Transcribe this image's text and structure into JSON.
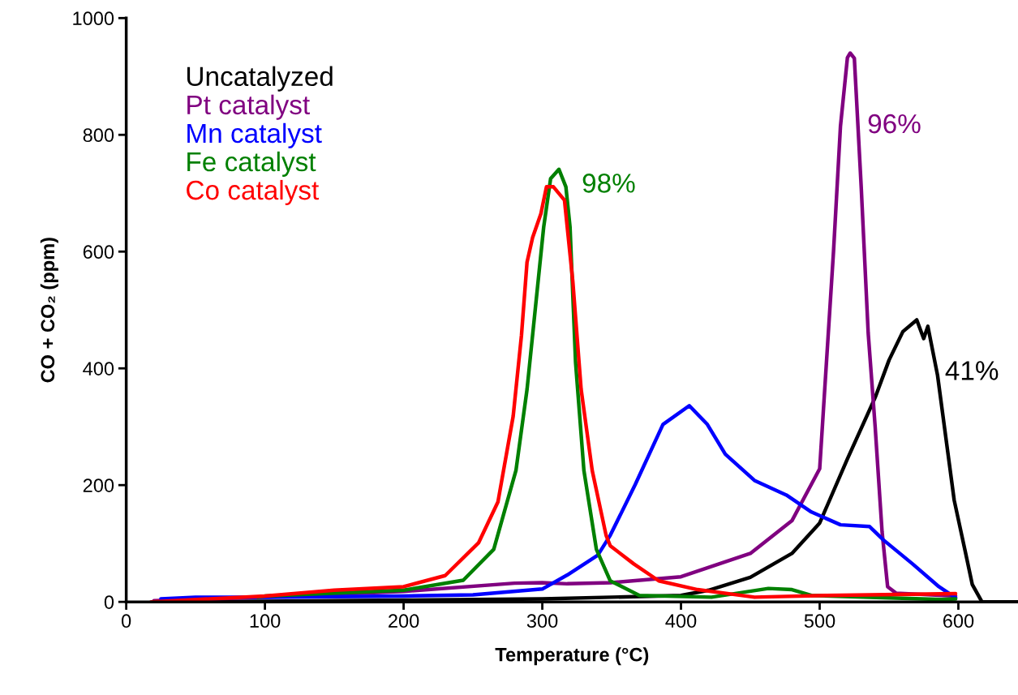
{
  "chart_data": {
    "type": "line",
    "xlabel": "Temperature (°C)",
    "ylabel": "CO + CO₂ (ppm)",
    "xlim": [
      0,
      643
    ],
    "xticks": [
      0,
      100,
      200,
      300,
      400,
      500,
      600
    ],
    "ylim": [
      0,
      1000
    ],
    "yticks": [
      0,
      200,
      400,
      600,
      800,
      1000
    ],
    "grid": false,
    "legend": "top left",
    "marker": "none",
    "line_style": "solid",
    "series": [
      {
        "name": "Uncatalyzed",
        "color": "#000000",
        "x": [
          20,
          100,
          200,
          300,
          350,
          400,
          420,
          450,
          480,
          500,
          520,
          540,
          550,
          560,
          570,
          575,
          578,
          585,
          597,
          605,
          610,
          617,
          643
        ],
        "values": [
          0,
          1,
          3,
          5,
          8,
          11,
          20,
          42,
          83,
          135,
          245,
          350,
          414,
          463,
          483,
          451,
          472,
          388,
          174,
          86,
          30,
          0,
          0
        ]
      },
      {
        "name": "Pt catalyst",
        "color": "#800080",
        "x": [
          20,
          100,
          200,
          280,
          300,
          318,
          350,
          400,
          450,
          480,
          500,
          510,
          515,
          520,
          522,
          525,
          530,
          535,
          540,
          545,
          549,
          555,
          598
        ],
        "values": [
          2,
          8,
          18,
          32,
          33,
          31,
          33,
          43,
          83,
          139,
          228,
          601,
          815,
          932,
          940,
          931,
          708,
          460,
          300,
          120,
          26,
          15,
          10
        ]
      },
      {
        "name": "Mn catalyst",
        "color": "#0000ff",
        "x": [
          25,
          50,
          100,
          200,
          250,
          300,
          318,
          340,
          349,
          367,
          387,
          406,
          419,
          432,
          453,
          476,
          494,
          515,
          536,
          546,
          567,
          586,
          598
        ],
        "values": [
          5,
          8,
          8,
          10,
          12,
          22,
          46,
          80,
          114,
          201,
          304,
          336,
          304,
          253,
          208,
          183,
          154,
          132,
          129,
          106,
          65,
          26,
          7
        ]
      },
      {
        "name": "Fe catalyst",
        "color": "#008000",
        "x": [
          95,
          100,
          200,
          243,
          265,
          281,
          289,
          295,
          301,
          306,
          312,
          317,
          320,
          324,
          330,
          339,
          349,
          370,
          422,
          463,
          480,
          494,
          588,
          598
        ],
        "values": [
          8,
          10,
          20,
          37,
          90,
          225,
          364,
          503,
          642,
          725,
          741,
          711,
          642,
          410,
          225,
          90,
          36,
          11,
          8,
          23,
          21,
          11,
          4,
          5
        ]
      },
      {
        "name": "Co catalyst",
        "color": "#ff0000",
        "x": [
          18,
          100,
          150,
          200,
          230,
          254,
          268,
          279,
          285,
          289,
          293,
          299,
          303,
          308,
          316,
          322,
          328,
          336,
          346,
          349,
          366,
          384,
          412,
          453,
          505,
          598
        ],
        "values": [
          0,
          10,
          20,
          26,
          45,
          101,
          171,
          318,
          457,
          582,
          624,
          665,
          711,
          711,
          688,
          549,
          364,
          225,
          114,
          96,
          65,
          36,
          21,
          8,
          11,
          14
        ]
      }
    ],
    "annotations": [
      {
        "text": "98%",
        "x": 312,
        "y": 741
      },
      {
        "text": "96%",
        "x": 522,
        "y": 940
      },
      {
        "text": "41%",
        "x": 585,
        "y": 388
      }
    ]
  }
}
